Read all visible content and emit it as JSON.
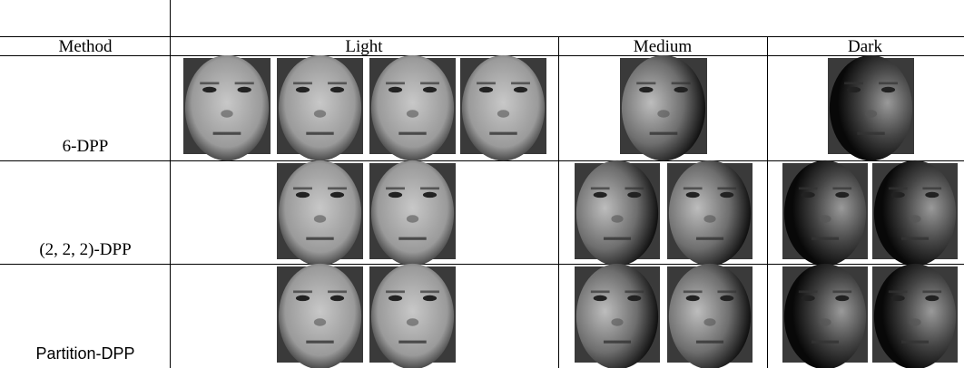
{
  "table": {
    "header": [
      "Method",
      "Light",
      "Medium",
      "Dark"
    ],
    "rows": [
      {
        "method": "6-DPP"
      },
      {
        "method": "(2, 2, 2)-DPP"
      },
      {
        "method": "Partition-DPP"
      }
    ]
  }
}
